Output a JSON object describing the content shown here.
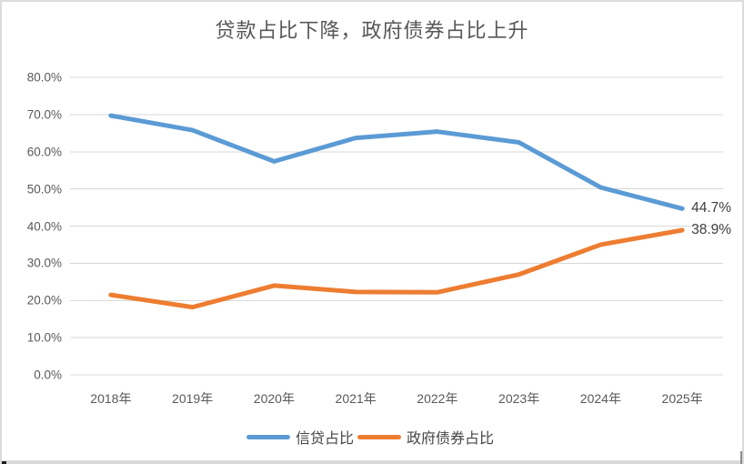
{
  "chart_data": {
    "type": "line",
    "title": "贷款占比下降，政府债券占比上升",
    "categories": [
      "2018年",
      "2019年",
      "2020年",
      "2021年",
      "2022年",
      "2023年",
      "2024年",
      "2025年"
    ],
    "series": [
      {
        "name": "信贷占比",
        "color": "#5B9BD5",
        "values": [
          69.7,
          65.8,
          57.4,
          63.7,
          65.4,
          62.5,
          50.4,
          44.7
        ],
        "end_label": "44.7%"
      },
      {
        "name": "政府债券占比",
        "color": "#ED7D31",
        "values": [
          21.5,
          18.2,
          24.0,
          22.3,
          22.2,
          27.0,
          35.0,
          38.9
        ],
        "end_label": "38.9%"
      }
    ],
    "ylim": [
      0,
      80
    ],
    "ytick_step": 10,
    "ytick_labels": [
      "0.0%",
      "10.0%",
      "20.0%",
      "30.0%",
      "40.0%",
      "50.0%",
      "60.0%",
      "70.0%",
      "80.0%"
    ],
    "grid": true,
    "gridline_color": "#d9d9d9",
    "legend_position": "bottom",
    "axis_label_color": "#595959",
    "data_label_color": "#3f3f3f"
  }
}
